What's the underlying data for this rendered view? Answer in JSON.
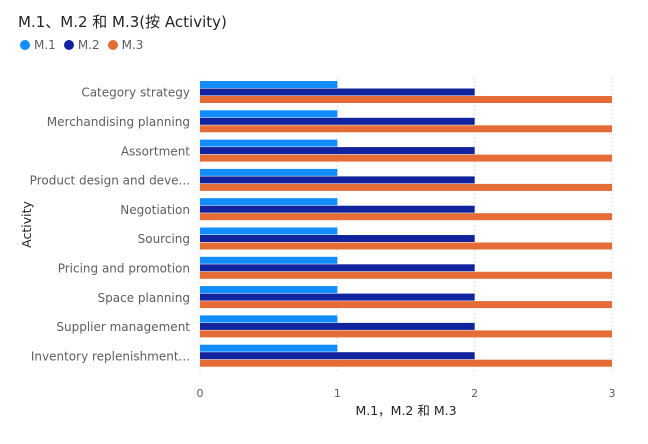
{
  "title": "M.1、M.2 和 M.3(按 Activity)",
  "legend": {
    "items": [
      {
        "label": "M.1",
        "color": "#118DFF"
      },
      {
        "label": "M.2",
        "color": "#12239E"
      },
      {
        "label": "M.3",
        "color": "#E66C37"
      }
    ]
  },
  "chart_data": {
    "type": "bar",
    "orientation": "horizontal",
    "title": "M.1、M.2 和 M.3(按 Activity)",
    "xlabel": "M.1，M.2 和 M.3",
    "ylabel": "Activity",
    "xlim": [
      0,
      3
    ],
    "xticks": [
      "0",
      "1",
      "2",
      "3"
    ],
    "grid": true,
    "legend_position": "top-left",
    "categories": [
      "Category strategy",
      "Merchandising planning",
      "Assortment",
      "Product design and deve...",
      "Negotiation",
      "Sourcing",
      "Pricing and promotion",
      "Space planning",
      "Supplier management",
      "Inventory replenishment..."
    ],
    "series": [
      {
        "name": "M.1",
        "color": "#118DFF",
        "values": [
          1,
          1,
          1,
          1,
          1,
          1,
          1,
          1,
          1,
          1
        ]
      },
      {
        "name": "M.2",
        "color": "#12239E",
        "values": [
          2,
          2,
          2,
          2,
          2,
          2,
          2,
          2,
          2,
          2
        ]
      },
      {
        "name": "M.3",
        "color": "#E66C37",
        "values": [
          3,
          3,
          3,
          3,
          3,
          3,
          3,
          3,
          3,
          3
        ]
      }
    ]
  }
}
